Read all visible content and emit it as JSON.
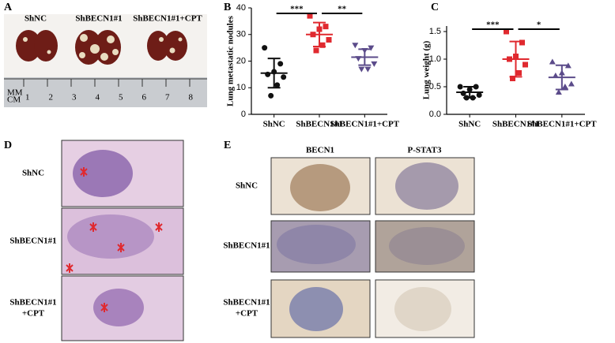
{
  "panel_labels": [
    "A",
    "B",
    "C",
    "D",
    "E"
  ],
  "panel_a": {
    "samples": [
      "ShNC",
      "ShBECN1#1",
      "ShBECN1#1+CPT"
    ],
    "ruler_units": [
      "MM",
      "CM"
    ],
    "ruler_numbers": [
      1,
      2,
      3,
      4,
      5,
      6,
      7,
      8
    ]
  },
  "panel_d": {
    "rows": [
      "ShNC",
      "ShBECN1#1",
      [
        "ShBECN1#1",
        "+CPT"
      ]
    ]
  },
  "panel_e": {
    "columns": [
      "BECN1",
      "P-STAT3"
    ],
    "rows": [
      "ShNC",
      "ShBECN1#1",
      [
        "ShBECN1#1",
        "+CPT"
      ]
    ]
  },
  "chart_data": [
    {
      "type": "dot",
      "ylabel": "Lung metastatic nodules",
      "categories": [
        "ShNC",
        "ShBECN1#1",
        "ShBECN1#1+CPT"
      ],
      "groups": [
        {
          "color": "#111111",
          "marker": "circle",
          "values": [
            25,
            19,
            16,
            15,
            14,
            11,
            7
          ],
          "mean": 15.5,
          "sd": 5.5
        },
        {
          "color": "#e0292f",
          "marker": "square",
          "values": [
            37,
            33,
            32,
            30,
            28,
            26,
            24
          ],
          "mean": 30,
          "sd": 4.5
        },
        {
          "color": "#5b4b8a",
          "marker": "triangle-down",
          "values": [
            26,
            25,
            24,
            21,
            19,
            17,
            17
          ],
          "mean": 21.5,
          "sd": 3
        }
      ],
      "ylim": [
        0,
        40
      ],
      "yticks": [
        0,
        10,
        20,
        30,
        40
      ],
      "significance": [
        "***",
        "**"
      ]
    },
    {
      "type": "dot",
      "ylabel": "Lung weight (g)",
      "categories": [
        "ShNC",
        "ShBECN1#1",
        "ShBECN1#1+CPT"
      ],
      "groups": [
        {
          "color": "#111111",
          "marker": "circle",
          "values": [
            0.5,
            0.5,
            0.45,
            0.38,
            0.35,
            0.3,
            0.3
          ],
          "mean": 0.4,
          "sd": 0.1
        },
        {
          "color": "#e0292f",
          "marker": "square",
          "values": [
            1.5,
            1.3,
            1.05,
            1.0,
            0.9,
            0.75,
            0.65
          ],
          "mean": 1.0,
          "sd": 0.32
        },
        {
          "color": "#5b4b8a",
          "marker": "triangle-up",
          "values": [
            0.95,
            0.88,
            0.75,
            0.7,
            0.55,
            0.5,
            0.4
          ],
          "mean": 0.67,
          "sd": 0.22
        }
      ],
      "ylim": [
        0,
        1.6
      ],
      "yticks": [
        {
          "value": 0,
          "label": "0.0"
        },
        0.5,
        {
          "value": 1,
          "label": "1.0"
        },
        1.5
      ],
      "significance": [
        "***",
        "*"
      ]
    }
  ]
}
